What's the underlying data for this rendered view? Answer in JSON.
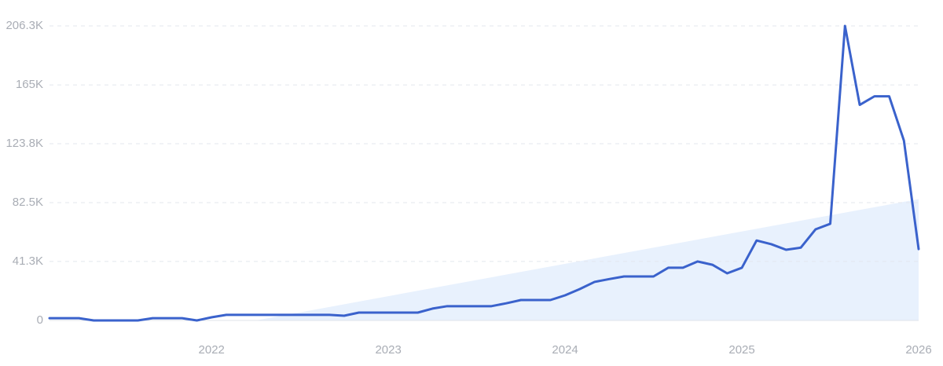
{
  "chart_data": {
    "type": "line",
    "x": [
      "2021-02",
      "2021-03",
      "2021-04",
      "2021-05",
      "2021-06",
      "2021-07",
      "2021-08",
      "2021-09",
      "2021-10",
      "2021-11",
      "2021-12",
      "2022-01",
      "2022-02",
      "2022-03",
      "2022-04",
      "2022-05",
      "2022-06",
      "2022-07",
      "2022-08",
      "2022-09",
      "2022-10",
      "2022-11",
      "2022-12",
      "2023-01",
      "2023-02",
      "2023-03",
      "2023-04",
      "2023-05",
      "2023-06",
      "2023-07",
      "2023-08",
      "2023-09",
      "2023-10",
      "2023-11",
      "2023-12",
      "2024-01",
      "2024-02",
      "2024-03",
      "2024-04",
      "2024-05",
      "2024-06",
      "2024-07",
      "2024-08",
      "2024-09",
      "2024-10",
      "2024-11",
      "2024-12",
      "2025-01",
      "2025-02",
      "2025-03",
      "2025-04",
      "2025-05",
      "2025-06",
      "2025-07",
      "2025-08",
      "2025-09",
      "2025-10",
      "2025-11",
      "2025-12",
      "2026-01"
    ],
    "series": [
      {
        "color": "#3a62cc",
        "values": [
          1600,
          1600,
          1600,
          0,
          0,
          0,
          0,
          1600,
          1600,
          1600,
          0,
          2200,
          3900,
          3900,
          3900,
          3900,
          3900,
          3900,
          3900,
          3900,
          3300,
          5500,
          5500,
          5500,
          5500,
          5500,
          8300,
          10000,
          10000,
          10000,
          10000,
          12000,
          14300,
          14300,
          14300,
          17600,
          22000,
          27000,
          29000,
          30800,
          30800,
          30800,
          36900,
          36900,
          41300,
          39000,
          33000,
          36900,
          56000,
          53400,
          49500,
          51000,
          63800,
          67700,
          206300,
          151000,
          157000,
          157000,
          126000,
          50000
        ]
      }
    ],
    "trend": {
      "color": "#e8f1fd",
      "x": [
        "2022-04",
        "2026-01"
      ],
      "values": [
        0,
        85000
      ]
    },
    "xlim": [
      "2021-02",
      "2026-01"
    ],
    "xticks": [
      {
        "value": "2022-01",
        "label": "2022"
      },
      {
        "value": "2023-01",
        "label": "2023"
      },
      {
        "value": "2024-01",
        "label": "2024"
      },
      {
        "value": "2025-01",
        "label": "2025"
      },
      {
        "value": "2026-01",
        "label": "2026"
      }
    ],
    "ylim": [
      0,
      206300
    ],
    "yticks": [
      0,
      {
        "value": 41300,
        "label": "41.3K"
      },
      {
        "value": 82500,
        "label": "82.5K"
      },
      {
        "value": 123800,
        "label": "123.8K"
      },
      {
        "value": 165000,
        "label": "165K"
      },
      {
        "value": 206300,
        "label": "206.3K"
      }
    ],
    "grid": true
  }
}
